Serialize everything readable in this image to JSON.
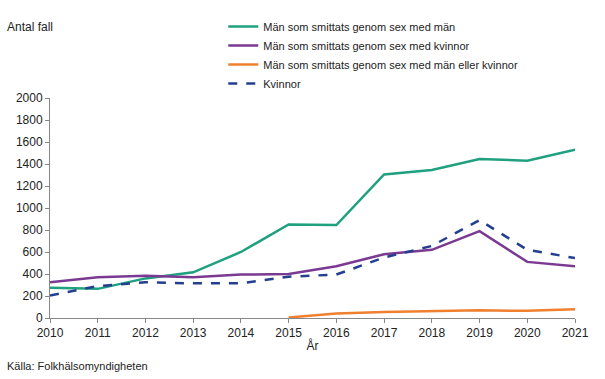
{
  "chart_data": {
    "type": "line",
    "ylabel": "Antal fall",
    "xlabel": "År",
    "annotations": [
      {
        "text": "Källa: Folkhälsomyndigheten"
      }
    ],
    "x": [
      2010,
      2011,
      2012,
      2013,
      2014,
      2015,
      2016,
      2017,
      2018,
      2019,
      2020,
      2021
    ],
    "series": [
      {
        "name": "Män som smittats genom sex med män",
        "color": "#1fa07e",
        "line_style": "solid",
        "values": [
          275,
          265,
          360,
          415,
          600,
          850,
          845,
          1305,
          1345,
          1445,
          1430,
          1530
        ]
      },
      {
        "name": "Män som smittats genom sex med kvinnor",
        "color": "#7b3a92",
        "line_style": "solid",
        "values": [
          325,
          370,
          385,
          370,
          395,
          400,
          470,
          580,
          620,
          790,
          510,
          470
        ]
      },
      {
        "name": "Män som smittats genom sex med män eller kvinnor",
        "color": "#f07f2e",
        "line_style": "solid",
        "values": [
          null,
          null,
          null,
          null,
          null,
          5,
          40,
          55,
          60,
          70,
          65,
          80
        ]
      },
      {
        "name": "Kvinnor",
        "color": "#243f8f",
        "line_style": "dashed",
        "values": [
          205,
          290,
          325,
          315,
          315,
          375,
          395,
          550,
          655,
          890,
          620,
          545
        ]
      }
    ],
    "xlim": [
      2010,
      2021
    ],
    "xticks": [
      2010,
      2011,
      2012,
      2013,
      2014,
      2015,
      2016,
      2017,
      2018,
      2019,
      2020,
      2021
    ],
    "ylim": [
      0,
      2000
    ],
    "yticks": [
      0,
      200,
      400,
      600,
      800,
      1000,
      1200,
      1400,
      1600,
      1800,
      2000
    ],
    "grid": false,
    "legend": "top"
  }
}
